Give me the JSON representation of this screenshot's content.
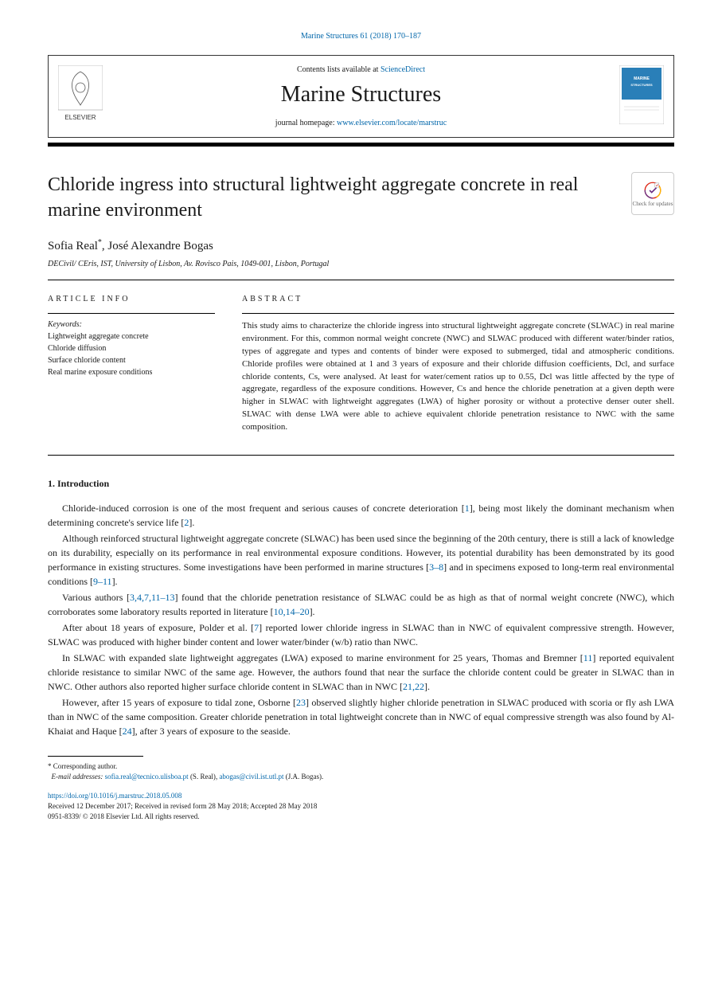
{
  "pageRef": {
    "journal": "Marine Structures",
    "volPages": "61 (2018) 170–187"
  },
  "headerBox": {
    "contentsLine": "Contents lists available at",
    "contentsLink": "ScienceDirect",
    "journalTitle": "Marine Structures",
    "homepageLabel": "journal homepage:",
    "homepageUrl": "www.elsevier.com/locate/marstruc",
    "publisherName": "ELSEVIER",
    "coverLabel": "MARINE STRUCTURES"
  },
  "article": {
    "title": "Chloride ingress into structural lightweight aggregate concrete in real marine environment",
    "checkBadge": "Check for updates",
    "authors": [
      {
        "name": "Sofia Real",
        "marks": "*"
      },
      {
        "name": "José Alexandre Bogas",
        "marks": ""
      }
    ],
    "affiliation": "DECivil/ CEris, IST, University of Lisbon, Av. Rovisco Pais, 1049-001, Lisbon, Portugal"
  },
  "infoHeads": {
    "left": "ARTICLE INFO",
    "right": "ABSTRACT"
  },
  "keywords": {
    "label": "Keywords:",
    "items": [
      "Lightweight aggregate concrete",
      "Chloride diffusion",
      "Surface chloride content",
      "Real marine exposure conditions"
    ]
  },
  "abstract": "This study aims to characterize the chloride ingress into structural lightweight aggregate concrete (SLWAC) in real marine environment. For this, common normal weight concrete (NWC) and SLWAC produced with different water/binder ratios, types of aggregate and types and contents of binder were exposed to submerged, tidal and atmospheric conditions. Chloride profiles were obtained at 1 and 3 years of exposure and their chloride diffusion coefficients, Dcl, and surface chloride contents, Cs, were analysed. At least for water/cement ratios up to 0.55, Dcl was little affected by the type of aggregate, regardless of the exposure conditions. However, Cs and hence the chloride penetration at a given depth were higher in SLWAC with lightweight aggregates (LWA) of higher porosity or without a protective denser outer shell. SLWAC with dense LWA were able to achieve equivalent chloride penetration resistance to NWC with the same composition.",
  "section1": {
    "title": "1. Introduction",
    "paragraphs": [
      {
        "pre": "Chloride-induced corrosion is one of the most frequent and serious causes of concrete deterioration [",
        "r1": "1",
        "mid1": "], being most likely the dominant mechanism when determining concrete's service life [",
        "r2": "2",
        "post": "]."
      },
      {
        "pre": "Although reinforced structural lightweight aggregate concrete (SLWAC) has been used since the beginning of the 20th century, there is still a lack of knowledge on its durability, especially on its performance in real environmental exposure conditions. However, its potential durability has been demonstrated by its good performance in existing structures. Some investigations have been performed in marine structures [",
        "r1": "3–8",
        "mid1": "] and in specimens exposed to long-term real environmental conditions [",
        "r2": "9–11",
        "post": "]."
      },
      {
        "pre": "Various authors [",
        "r1": "3,4,7,11–13",
        "mid1": "] found that the chloride penetration resistance of SLWAC could be as high as that of normal weight concrete (NWC), which corroborates some laboratory results reported in literature [",
        "r2": "10,14–20",
        "post": "]."
      },
      {
        "pre": "After about 18 years of exposure, Polder et al. [",
        "r1": "7",
        "mid1": "] reported lower chloride ingress in SLWAC than in NWC of equivalent compressive strength. However, SLWAC was produced with higher binder content and lower water/binder (w/b) ratio than NWC.",
        "r2": "",
        "post": ""
      },
      {
        "pre": "In SLWAC with expanded slate lightweight aggregates (LWA) exposed to marine environment for 25 years, Thomas and Bremner [",
        "r1": "11",
        "mid1": "] reported equivalent chloride resistance to similar NWC of the same age. However, the authors found that near the surface the chloride content could be greater in SLWAC than in NWC. Other authors also reported higher surface chloride content in SLWAC than in NWC [",
        "r2": "21,22",
        "post": "]."
      },
      {
        "pre": "However, after 15 years of exposure to tidal zone, Osborne [",
        "r1": "23",
        "mid1": "] observed slightly higher chloride penetration in SLWAC produced with scoria or fly ash LWA than in NWC of the same composition. Greater chloride penetration in total lightweight concrete than in NWC of equal compressive strength was also found by Al-Khaiat and Haque [",
        "r2": "24",
        "post": "], after 3 years of exposure to the seaside."
      }
    ]
  },
  "footnote": {
    "corrLabel": "* Corresponding author.",
    "emailLabel": "E-mail addresses:",
    "emails": [
      {
        "addr": "sofia.real@tecnico.ulisboa.pt",
        "person": "(S. Real)"
      },
      {
        "addr": "abogas@civil.ist.utl.pt",
        "person": "(J.A. Bogas)"
      }
    ]
  },
  "doi": {
    "url": "https://doi.org/10.1016/j.marstruc.2018.05.008",
    "received": "Received 12 December 2017; Received in revised form 28 May 2018; Accepted 28 May 2018",
    "issn": "0951-8339/ © 2018 Elsevier Ltd. All rights reserved."
  },
  "colors": {
    "link": "#0066aa",
    "text": "#1a1a1a",
    "orange": "#f58220",
    "coverBlue": "#2a7fb8"
  }
}
